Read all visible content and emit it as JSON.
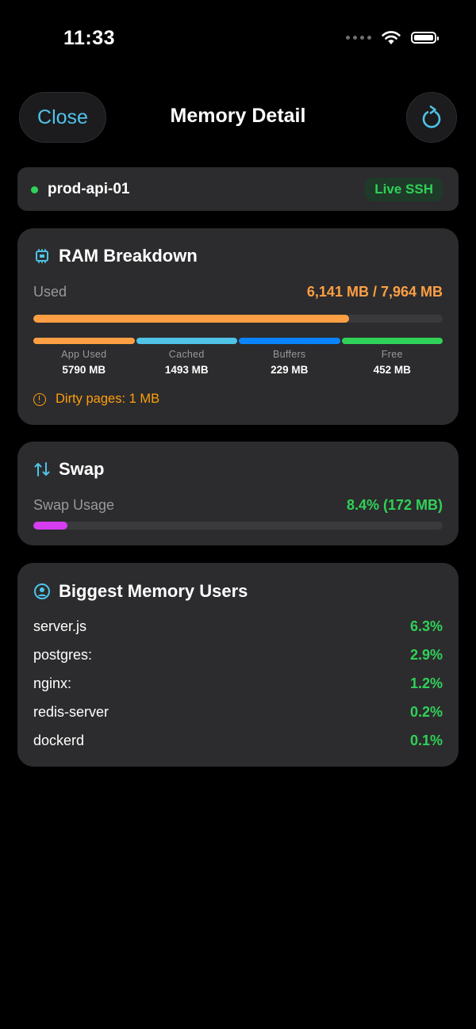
{
  "status_bar": {
    "time": "11:33"
  },
  "nav": {
    "close_label": "Close",
    "title": "Memory Detail",
    "refresh_icon": "refresh-icon"
  },
  "host": {
    "name": "prod-api-01",
    "badge": "Live SSH",
    "status_color": "#30d158"
  },
  "ram": {
    "title": "RAM Breakdown",
    "used_label": "Used",
    "used_value": "6,141 MB / 7,964 MB",
    "used_fraction": 0.771,
    "segments": [
      {
        "label": "App Used",
        "value": "5790 MB",
        "color": "#ff9f43"
      },
      {
        "label": "Cached",
        "value": "1493 MB",
        "color": "#4fc3e8"
      },
      {
        "label": "Buffers",
        "value": "229 MB",
        "color": "#0a84ff"
      },
      {
        "label": "Free",
        "value": "452 MB",
        "color": "#30d158"
      }
    ],
    "dirty": "Dirty pages: 1 MB"
  },
  "swap": {
    "title": "Swap",
    "label": "Swap Usage",
    "value": "8.4%  (172 MB)",
    "fraction": 0.084,
    "color": "#d63df0"
  },
  "users": {
    "title": "Biggest Memory Users",
    "items": [
      {
        "name": "server.js",
        "pct": "6.3%"
      },
      {
        "name": "postgres:",
        "pct": "2.9%"
      },
      {
        "name": "nginx:",
        "pct": "1.2%"
      },
      {
        "name": "redis-server",
        "pct": "0.2%"
      },
      {
        "name": "dockerd",
        "pct": "0.1%"
      }
    ]
  }
}
